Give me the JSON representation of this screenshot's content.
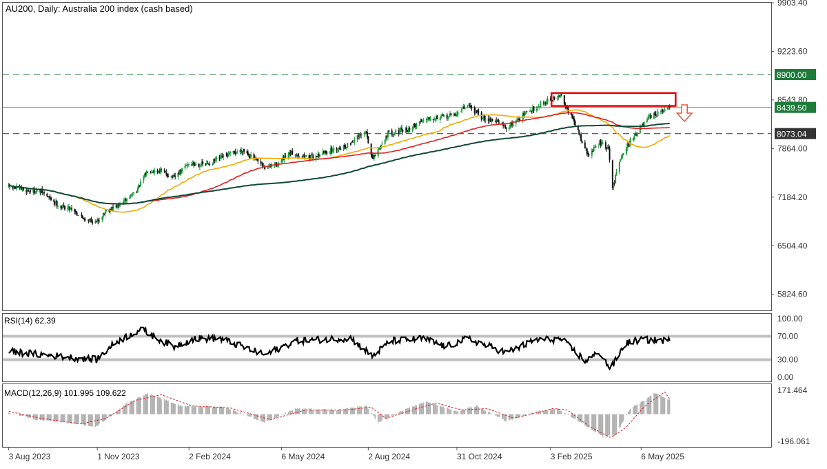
{
  "chart_data": {
    "type": "candlestick",
    "title": "AU200, Daily:  Australia 200 index (cash based)",
    "x_axis": {
      "tick_labels": [
        "3 Aug 2023",
        "1 Nov 2023",
        "2 Feb 2024",
        "6 May 2024",
        "2 Aug 2024",
        "31 Oct 2024",
        "3 Feb 2025",
        "6 May 2025"
      ]
    },
    "price_pane": {
      "ylim": [
        5600,
        9903.4
      ],
      "tick_labels": [
        "9903.40",
        "9223.60",
        "8543.80",
        "7864.00",
        "7184.20",
        "6504.40",
        "5824.60"
      ],
      "levels": [
        {
          "value": 8900.0,
          "label": "8900.00",
          "style": "dashed",
          "color": "#1e7b3a"
        },
        {
          "value": 8073.04,
          "label": "8073.04",
          "style": "dashed",
          "color": "#333333"
        }
      ],
      "current_price": {
        "value": 8439.5,
        "label": "8439.50",
        "color": "#1e7b3a"
      },
      "resistance_zone": {
        "from_date": "2025-02-04",
        "to_date": "2025-06-10",
        "low": 8460,
        "high": 8640,
        "color": "#e00000"
      },
      "arrow": {
        "direction": "down",
        "date": "2025-06-19",
        "value": 8360,
        "color": "#e05a3a"
      },
      "moving_average_colors": [
        "#f2a900",
        "#e02020",
        "#0d4a35"
      ],
      "close_anchors": [
        [
          "2023-08-03",
          7330
        ],
        [
          "2023-08-20",
          7280
        ],
        [
          "2023-09-05",
          7260
        ],
        [
          "2023-09-25",
          7050
        ],
        [
          "2023-10-06",
          7030
        ],
        [
          "2023-10-16",
          6900
        ],
        [
          "2023-10-31",
          6830
        ],
        [
          "2023-11-10",
          7000
        ],
        [
          "2023-11-25",
          7080
        ],
        [
          "2023-12-12",
          7300
        ],
        [
          "2023-12-22",
          7560
        ],
        [
          "2024-01-05",
          7550
        ],
        [
          "2024-01-18",
          7450
        ],
        [
          "2024-02-01",
          7650
        ],
        [
          "2024-02-20",
          7640
        ],
        [
          "2024-03-08",
          7750
        ],
        [
          "2024-03-28",
          7850
        ],
        [
          "2024-04-19",
          7590
        ],
        [
          "2024-05-02",
          7650
        ],
        [
          "2024-05-16",
          7800
        ],
        [
          "2024-06-05",
          7740
        ],
        [
          "2024-06-21",
          7820
        ],
        [
          "2024-07-10",
          7900
        ],
        [
          "2024-07-31",
          8100
        ],
        [
          "2024-08-06",
          7700
        ],
        [
          "2024-08-22",
          8080
        ],
        [
          "2024-09-12",
          8130
        ],
        [
          "2024-09-30",
          8300
        ],
        [
          "2024-10-17",
          8300
        ],
        [
          "2024-10-31",
          8350
        ],
        [
          "2024-11-11",
          8480
        ],
        [
          "2024-11-25",
          8300
        ],
        [
          "2024-12-10",
          8250
        ],
        [
          "2024-12-20",
          8150
        ],
        [
          "2025-01-08",
          8350
        ],
        [
          "2025-01-30",
          8530
        ],
        [
          "2025-02-14",
          8600
        ],
        [
          "2025-02-28",
          8200
        ],
        [
          "2025-03-13",
          7770
        ],
        [
          "2025-03-25",
          7950
        ],
        [
          "2025-04-03",
          7850
        ],
        [
          "2025-04-07",
          7300
        ],
        [
          "2025-04-15",
          7750
        ],
        [
          "2025-04-24",
          7950
        ],
        [
          "2025-05-05",
          8150
        ],
        [
          "2025-05-15",
          8300
        ],
        [
          "2025-05-27",
          8380
        ],
        [
          "2025-06-04",
          8439.5
        ]
      ]
    },
    "rsi_pane": {
      "label": "RSI(14) 62.39",
      "ylim": [
        0,
        100
      ],
      "tick_labels": [
        "100.00",
        "70.00",
        "30.00",
        "0.00"
      ],
      "levels": [
        70,
        30
      ],
      "line_color": "#000000",
      "anchors": [
        [
          "2023-08-03",
          44
        ],
        [
          "2023-09-10",
          38
        ],
        [
          "2023-10-05",
          34
        ],
        [
          "2023-10-31",
          30
        ],
        [
          "2023-11-20",
          60
        ],
        [
          "2023-12-15",
          82
        ],
        [
          "2024-01-17",
          52
        ],
        [
          "2024-02-07",
          66
        ],
        [
          "2024-03-05",
          66
        ],
        [
          "2024-04-19",
          38
        ],
        [
          "2024-05-20",
          62
        ],
        [
          "2024-07-15",
          67
        ],
        [
          "2024-08-06",
          36
        ],
        [
          "2024-08-25",
          62
        ],
        [
          "2024-09-27",
          66
        ],
        [
          "2024-10-20",
          52
        ],
        [
          "2024-11-11",
          66
        ],
        [
          "2024-12-20",
          42
        ],
        [
          "2025-01-20",
          64
        ],
        [
          "2025-02-14",
          65
        ],
        [
          "2025-03-10",
          28
        ],
        [
          "2025-03-25",
          42
        ],
        [
          "2025-04-04",
          16
        ],
        [
          "2025-04-07",
          20
        ],
        [
          "2025-04-20",
          58
        ],
        [
          "2025-05-05",
          64
        ],
        [
          "2025-06-04",
          62.39
        ]
      ]
    },
    "macd_pane": {
      "label": "MACD(12,26,9) 101.995 109.622",
      "ylim": [
        -196.061,
        171.464
      ],
      "tick_labels": [
        "171.464",
        "-196.061"
      ],
      "histogram_color": "#b0b0b0",
      "signal_color": "#e02020",
      "hist_anchors": [
        [
          "2023-08-03",
          15
        ],
        [
          "2023-08-31",
          -40
        ],
        [
          "2023-10-02",
          -60
        ],
        [
          "2023-10-31",
          -90
        ],
        [
          "2023-12-01",
          80
        ],
        [
          "2023-12-22",
          150
        ],
        [
          "2024-01-25",
          60
        ],
        [
          "2024-03-10",
          50
        ],
        [
          "2024-04-19",
          -60
        ],
        [
          "2024-05-20",
          40
        ],
        [
          "2024-07-01",
          30
        ],
        [
          "2024-07-31",
          60
        ],
        [
          "2024-08-12",
          -60
        ],
        [
          "2024-09-10",
          40
        ],
        [
          "2024-10-01",
          90
        ],
        [
          "2024-10-31",
          20
        ],
        [
          "2024-11-20",
          60
        ],
        [
          "2024-12-20",
          -50
        ],
        [
          "2025-01-20",
          20
        ],
        [
          "2025-02-10",
          40
        ],
        [
          "2025-03-10",
          -80
        ],
        [
          "2025-03-28",
          -160
        ],
        [
          "2025-04-10",
          -150
        ],
        [
          "2025-04-25",
          40
        ],
        [
          "2025-05-20",
          150
        ],
        [
          "2025-06-04",
          102
        ]
      ],
      "signal_anchors": [
        [
          "2023-08-03",
          20
        ],
        [
          "2023-09-05",
          -30
        ],
        [
          "2023-10-15",
          -70
        ],
        [
          "2023-11-10",
          -30
        ],
        [
          "2023-12-10",
          100
        ],
        [
          "2024-01-05",
          140
        ],
        [
          "2024-02-05",
          60
        ],
        [
          "2024-03-15",
          45
        ],
        [
          "2024-04-25",
          -40
        ],
        [
          "2024-05-30",
          30
        ],
        [
          "2024-07-10",
          30
        ],
        [
          "2024-08-05",
          50
        ],
        [
          "2024-08-20",
          -30
        ],
        [
          "2024-09-20",
          40
        ],
        [
          "2024-10-10",
          80
        ],
        [
          "2024-11-05",
          30
        ],
        [
          "2024-12-01",
          40
        ],
        [
          "2024-12-28",
          -30
        ],
        [
          "2025-02-05",
          40
        ],
        [
          "2025-02-20",
          30
        ],
        [
          "2025-03-15",
          -90
        ],
        [
          "2025-04-05",
          -170
        ],
        [
          "2025-04-20",
          -100
        ],
        [
          "2025-05-10",
          60
        ],
        [
          "2025-05-30",
          160
        ],
        [
          "2025-06-04",
          109.622
        ]
      ]
    }
  }
}
